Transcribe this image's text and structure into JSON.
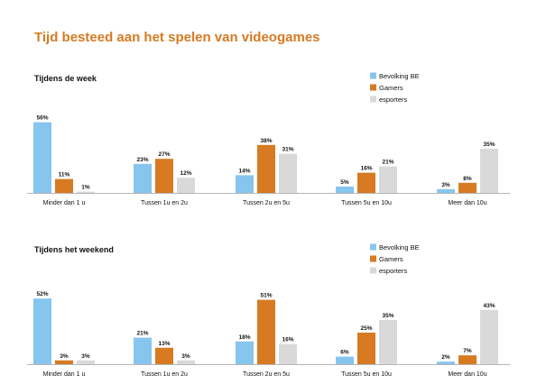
{
  "title": "Tijd besteed aan het spelen van videogames",
  "colors": {
    "title": "#d77a22",
    "Bevolking BE": "#86c5ee",
    "Gamers": "#d77a22",
    "esporters": "#d9d9d9",
    "axis": "#b5b5b5"
  },
  "chart_data": [
    {
      "type": "bar",
      "title": "Tijdens de week",
      "categories": [
        "Minder dan 1 u",
        "Tussen 1u en 2u",
        "Tussen 2u en 5u",
        "Tussen 5u en 10u",
        "Meer dan 10u"
      ],
      "series": [
        {
          "name": "Bevolking BE",
          "values": [
            56,
            23,
            14,
            5,
            3
          ]
        },
        {
          "name": "Gamers",
          "values": [
            11,
            27,
            38,
            16,
            8
          ]
        },
        {
          "name": "esporters",
          "values": [
            1,
            12,
            31,
            21,
            35
          ]
        }
      ],
      "value_suffix": "%",
      "ylim": [
        0,
        60
      ],
      "legend_position": "top-right",
      "grid": false
    },
    {
      "type": "bar",
      "title": "Tijdens het weekend",
      "categories": [
        "Minder dan 1 u",
        "Tussen 1u en 2u",
        "Tussen 2u en 5u",
        "Tussen 5u en 10u",
        "Meer dan 10u"
      ],
      "series": [
        {
          "name": "Bevolking BE",
          "values": [
            52,
            21,
            18,
            6,
            2
          ]
        },
        {
          "name": "Gamers",
          "values": [
            3,
            13,
            51,
            25,
            7
          ]
        },
        {
          "name": "esporters",
          "values": [
            3,
            3,
            16,
            35,
            43
          ]
        }
      ],
      "value_suffix": "%",
      "ylim": [
        0,
        60
      ],
      "legend_position": "top-right",
      "grid": false
    }
  ]
}
